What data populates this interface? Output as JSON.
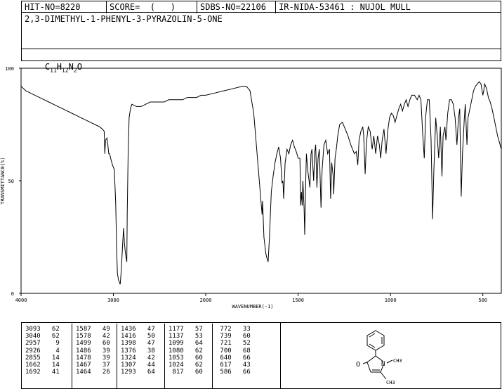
{
  "header": {
    "hit_no": "HIT-NO=8220",
    "score": "SCORE=  (   )",
    "sdbs_no": "SDBS-NO=22106",
    "ir_info": "IR-NIDA-53461 : NUJOL MULL"
  },
  "compound_name": "2,3-DIMETHYL-1-PHENYL-3-PYRAZOLIN-5-ONE",
  "formula": {
    "c": "C",
    "c_n": "11",
    "h": "H",
    "h_n": "12",
    "n": "N",
    "n_n": "2",
    "o": "O"
  },
  "structure_labels": {
    "oxo": "O",
    "n": "N",
    "methyl_n": "CH3",
    "methyl_c": "CH3"
  },
  "chart_data": {
    "type": "line",
    "xlabel": "WAVENUMBER(-1)",
    "ylabel": "TRANSMITTANCE(%)",
    "xlim": [
      4000,
      400
    ],
    "ylim": [
      0,
      100
    ],
    "x_ticks": [
      "4000",
      "3000",
      "2000",
      "1500",
      "1000",
      "500"
    ],
    "y_ticks": [
      "100",
      "50",
      "0"
    ],
    "spectrum": [
      [
        4000,
        92
      ],
      [
        3950,
        90
      ],
      [
        3900,
        89
      ],
      [
        3850,
        88
      ],
      [
        3800,
        87
      ],
      [
        3750,
        86
      ],
      [
        3700,
        85
      ],
      [
        3650,
        84
      ],
      [
        3600,
        83
      ],
      [
        3550,
        82
      ],
      [
        3500,
        81
      ],
      [
        3450,
        80
      ],
      [
        3400,
        79
      ],
      [
        3350,
        78
      ],
      [
        3300,
        77
      ],
      [
        3250,
        76
      ],
      [
        3200,
        75
      ],
      [
        3150,
        74
      ],
      [
        3120,
        73
      ],
      [
        3100,
        72
      ],
      [
        3093,
        62
      ],
      [
        3085,
        68
      ],
      [
        3070,
        69
      ],
      [
        3060,
        66
      ],
      [
        3050,
        62
      ],
      [
        3040,
        62
      ],
      [
        3030,
        60
      ],
      [
        3010,
        57
      ],
      [
        2990,
        55
      ],
      [
        2975,
        40
      ],
      [
        2965,
        20
      ],
      [
        2957,
        9
      ],
      [
        2945,
        6
      ],
      [
        2935,
        5
      ],
      [
        2926,
        4
      ],
      [
        2915,
        10
      ],
      [
        2900,
        22
      ],
      [
        2890,
        29
      ],
      [
        2880,
        22
      ],
      [
        2870,
        18
      ],
      [
        2862,
        16
      ],
      [
        2855,
        14
      ],
      [
        2850,
        35
      ],
      [
        2840,
        62
      ],
      [
        2830,
        78
      ],
      [
        2815,
        82
      ],
      [
        2800,
        84
      ],
      [
        2750,
        83
      ],
      [
        2700,
        83
      ],
      [
        2650,
        84
      ],
      [
        2600,
        85
      ],
      [
        2550,
        85
      ],
      [
        2500,
        85
      ],
      [
        2450,
        85
      ],
      [
        2400,
        86
      ],
      [
        2350,
        86
      ],
      [
        2300,
        86
      ],
      [
        2250,
        86
      ],
      [
        2200,
        87
      ],
      [
        2150,
        87
      ],
      [
        2100,
        87
      ],
      [
        2050,
        88
      ],
      [
        2000,
        88
      ],
      [
        1950,
        89
      ],
      [
        1900,
        90
      ],
      [
        1850,
        91
      ],
      [
        1800,
        92
      ],
      [
        1780,
        92
      ],
      [
        1760,
        90
      ],
      [
        1740,
        80
      ],
      [
        1720,
        60
      ],
      [
        1705,
        45
      ],
      [
        1695,
        35
      ],
      [
        1692,
        41
      ],
      [
        1685,
        25
      ],
      [
        1675,
        18
      ],
      [
        1670,
        16
      ],
      [
        1662,
        14
      ],
      [
        1655,
        25
      ],
      [
        1645,
        45
      ],
      [
        1635,
        52
      ],
      [
        1625,
        58
      ],
      [
        1615,
        62
      ],
      [
        1605,
        65
      ],
      [
        1595,
        60
      ],
      [
        1587,
        49
      ],
      [
        1582,
        50
      ],
      [
        1578,
        42
      ],
      [
        1570,
        58
      ],
      [
        1560,
        64
      ],
      [
        1550,
        62
      ],
      [
        1540,
        66
      ],
      [
        1530,
        68
      ],
      [
        1520,
        65
      ],
      [
        1510,
        63
      ],
      [
        1499,
        60
      ],
      [
        1490,
        60
      ],
      [
        1486,
        39
      ],
      [
        1482,
        45
      ],
      [
        1478,
        39
      ],
      [
        1474,
        50
      ],
      [
        1467,
        37
      ],
      [
        1464,
        26
      ],
      [
        1460,
        45
      ],
      [
        1455,
        62
      ],
      [
        1448,
        55
      ],
      [
        1436,
        47
      ],
      [
        1430,
        62
      ],
      [
        1425,
        64
      ],
      [
        1416,
        50
      ],
      [
        1410,
        62
      ],
      [
        1405,
        66
      ],
      [
        1398,
        47
      ],
      [
        1392,
        60
      ],
      [
        1385,
        64
      ],
      [
        1376,
        38
      ],
      [
        1370,
        55
      ],
      [
        1360,
        66
      ],
      [
        1350,
        68
      ],
      [
        1340,
        62
      ],
      [
        1330,
        64
      ],
      [
        1324,
        42
      ],
      [
        1318,
        58
      ],
      [
        1310,
        52
      ],
      [
        1307,
        44
      ],
      [
        1300,
        60
      ],
      [
        1293,
        64
      ],
      [
        1285,
        70
      ],
      [
        1275,
        75
      ],
      [
        1260,
        76
      ],
      [
        1245,
        73
      ],
      [
        1230,
        70
      ],
      [
        1215,
        66
      ],
      [
        1205,
        64
      ],
      [
        1195,
        62
      ],
      [
        1185,
        63
      ],
      [
        1177,
        57
      ],
      [
        1170,
        68
      ],
      [
        1160,
        72
      ],
      [
        1150,
        74
      ],
      [
        1145,
        70
      ],
      [
        1137,
        53
      ],
      [
        1130,
        67
      ],
      [
        1120,
        74
      ],
      [
        1110,
        72
      ],
      [
        1099,
        64
      ],
      [
        1090,
        70
      ],
      [
        1080,
        62
      ],
      [
        1070,
        70
      ],
      [
        1060,
        66
      ],
      [
        1053,
        60
      ],
      [
        1045,
        68
      ],
      [
        1035,
        73
      ],
      [
        1024,
        62
      ],
      [
        1015,
        72
      ],
      [
        1005,
        78
      ],
      [
        995,
        80
      ],
      [
        985,
        79
      ],
      [
        975,
        76
      ],
      [
        965,
        79
      ],
      [
        955,
        82
      ],
      [
        945,
        84
      ],
      [
        935,
        81
      ],
      [
        925,
        84
      ],
      [
        915,
        86
      ],
      [
        905,
        83
      ],
      [
        895,
        86
      ],
      [
        885,
        88
      ],
      [
        870,
        88
      ],
      [
        855,
        86
      ],
      [
        845,
        88
      ],
      [
        835,
        86
      ],
      [
        825,
        70
      ],
      [
        817,
        60
      ],
      [
        810,
        78
      ],
      [
        800,
        86
      ],
      [
        790,
        86
      ],
      [
        780,
        68
      ],
      [
        772,
        33
      ],
      [
        765,
        55
      ],
      [
        755,
        78
      ],
      [
        745,
        68
      ],
      [
        739,
        60
      ],
      [
        730,
        74
      ],
      [
        721,
        52
      ],
      [
        715,
        70
      ],
      [
        705,
        74
      ],
      [
        700,
        68
      ],
      [
        690,
        80
      ],
      [
        680,
        86
      ],
      [
        670,
        86
      ],
      [
        660,
        84
      ],
      [
        650,
        78
      ],
      [
        640,
        66
      ],
      [
        632,
        78
      ],
      [
        625,
        82
      ],
      [
        617,
        43
      ],
      [
        610,
        62
      ],
      [
        600,
        78
      ],
      [
        595,
        84
      ],
      [
        586,
        66
      ],
      [
        580,
        78
      ],
      [
        570,
        82
      ],
      [
        560,
        86
      ],
      [
        550,
        90
      ],
      [
        540,
        92
      ],
      [
        530,
        93
      ],
      [
        520,
        94
      ],
      [
        510,
        93
      ],
      [
        500,
        88
      ],
      [
        495,
        90
      ],
      [
        490,
        93
      ],
      [
        480,
        91
      ],
      [
        470,
        87
      ],
      [
        460,
        85
      ],
      [
        450,
        82
      ],
      [
        440,
        78
      ],
      [
        430,
        74
      ],
      [
        420,
        70
      ],
      [
        410,
        67
      ],
      [
        400,
        64
      ]
    ],
    "peak_table": [
      {
        "wn": "3093",
        "t": "62"
      },
      {
        "wn": "3040",
        "t": "62"
      },
      {
        "wn": "2957",
        "t": "9"
      },
      {
        "wn": "2926",
        "t": "4"
      },
      {
        "wn": "2855",
        "t": "14"
      },
      {
        "wn": "1662",
        "t": "14"
      },
      {
        "wn": "1692",
        "t": "41"
      },
      {
        "wn": "1587",
        "t": "49"
      },
      {
        "wn": "1578",
        "t": "42"
      },
      {
        "wn": "1499",
        "t": "60"
      },
      {
        "wn": "1486",
        "t": "39"
      },
      {
        "wn": "1478",
        "t": "39"
      },
      {
        "wn": "1467",
        "t": "37"
      },
      {
        "wn": "1464",
        "t": "26"
      },
      {
        "wn": "1436",
        "t": "47"
      },
      {
        "wn": "1416",
        "t": "50"
      },
      {
        "wn": "1398",
        "t": "47"
      },
      {
        "wn": "1376",
        "t": "38"
      },
      {
        "wn": "1324",
        "t": "42"
      },
      {
        "wn": "1307",
        "t": "44"
      },
      {
        "wn": "1293",
        "t": "64"
      },
      {
        "wn": "1177",
        "t": "57"
      },
      {
        "wn": "1137",
        "t": "53"
      },
      {
        "wn": "1099",
        "t": "64"
      },
      {
        "wn": "1080",
        "t": "62"
      },
      {
        "wn": "1053",
        "t": "60"
      },
      {
        "wn": "1024",
        "t": "62"
      },
      {
        "wn": "817",
        "t": "60"
      },
      {
        "wn": "772",
        "t": "33"
      },
      {
        "wn": "739",
        "t": "60"
      },
      {
        "wn": "721",
        "t": "52"
      },
      {
        "wn": "700",
        "t": "68"
      },
      {
        "wn": "640",
        "t": "66"
      },
      {
        "wn": "617",
        "t": "43"
      },
      {
        "wn": "586",
        "t": "66"
      }
    ]
  }
}
